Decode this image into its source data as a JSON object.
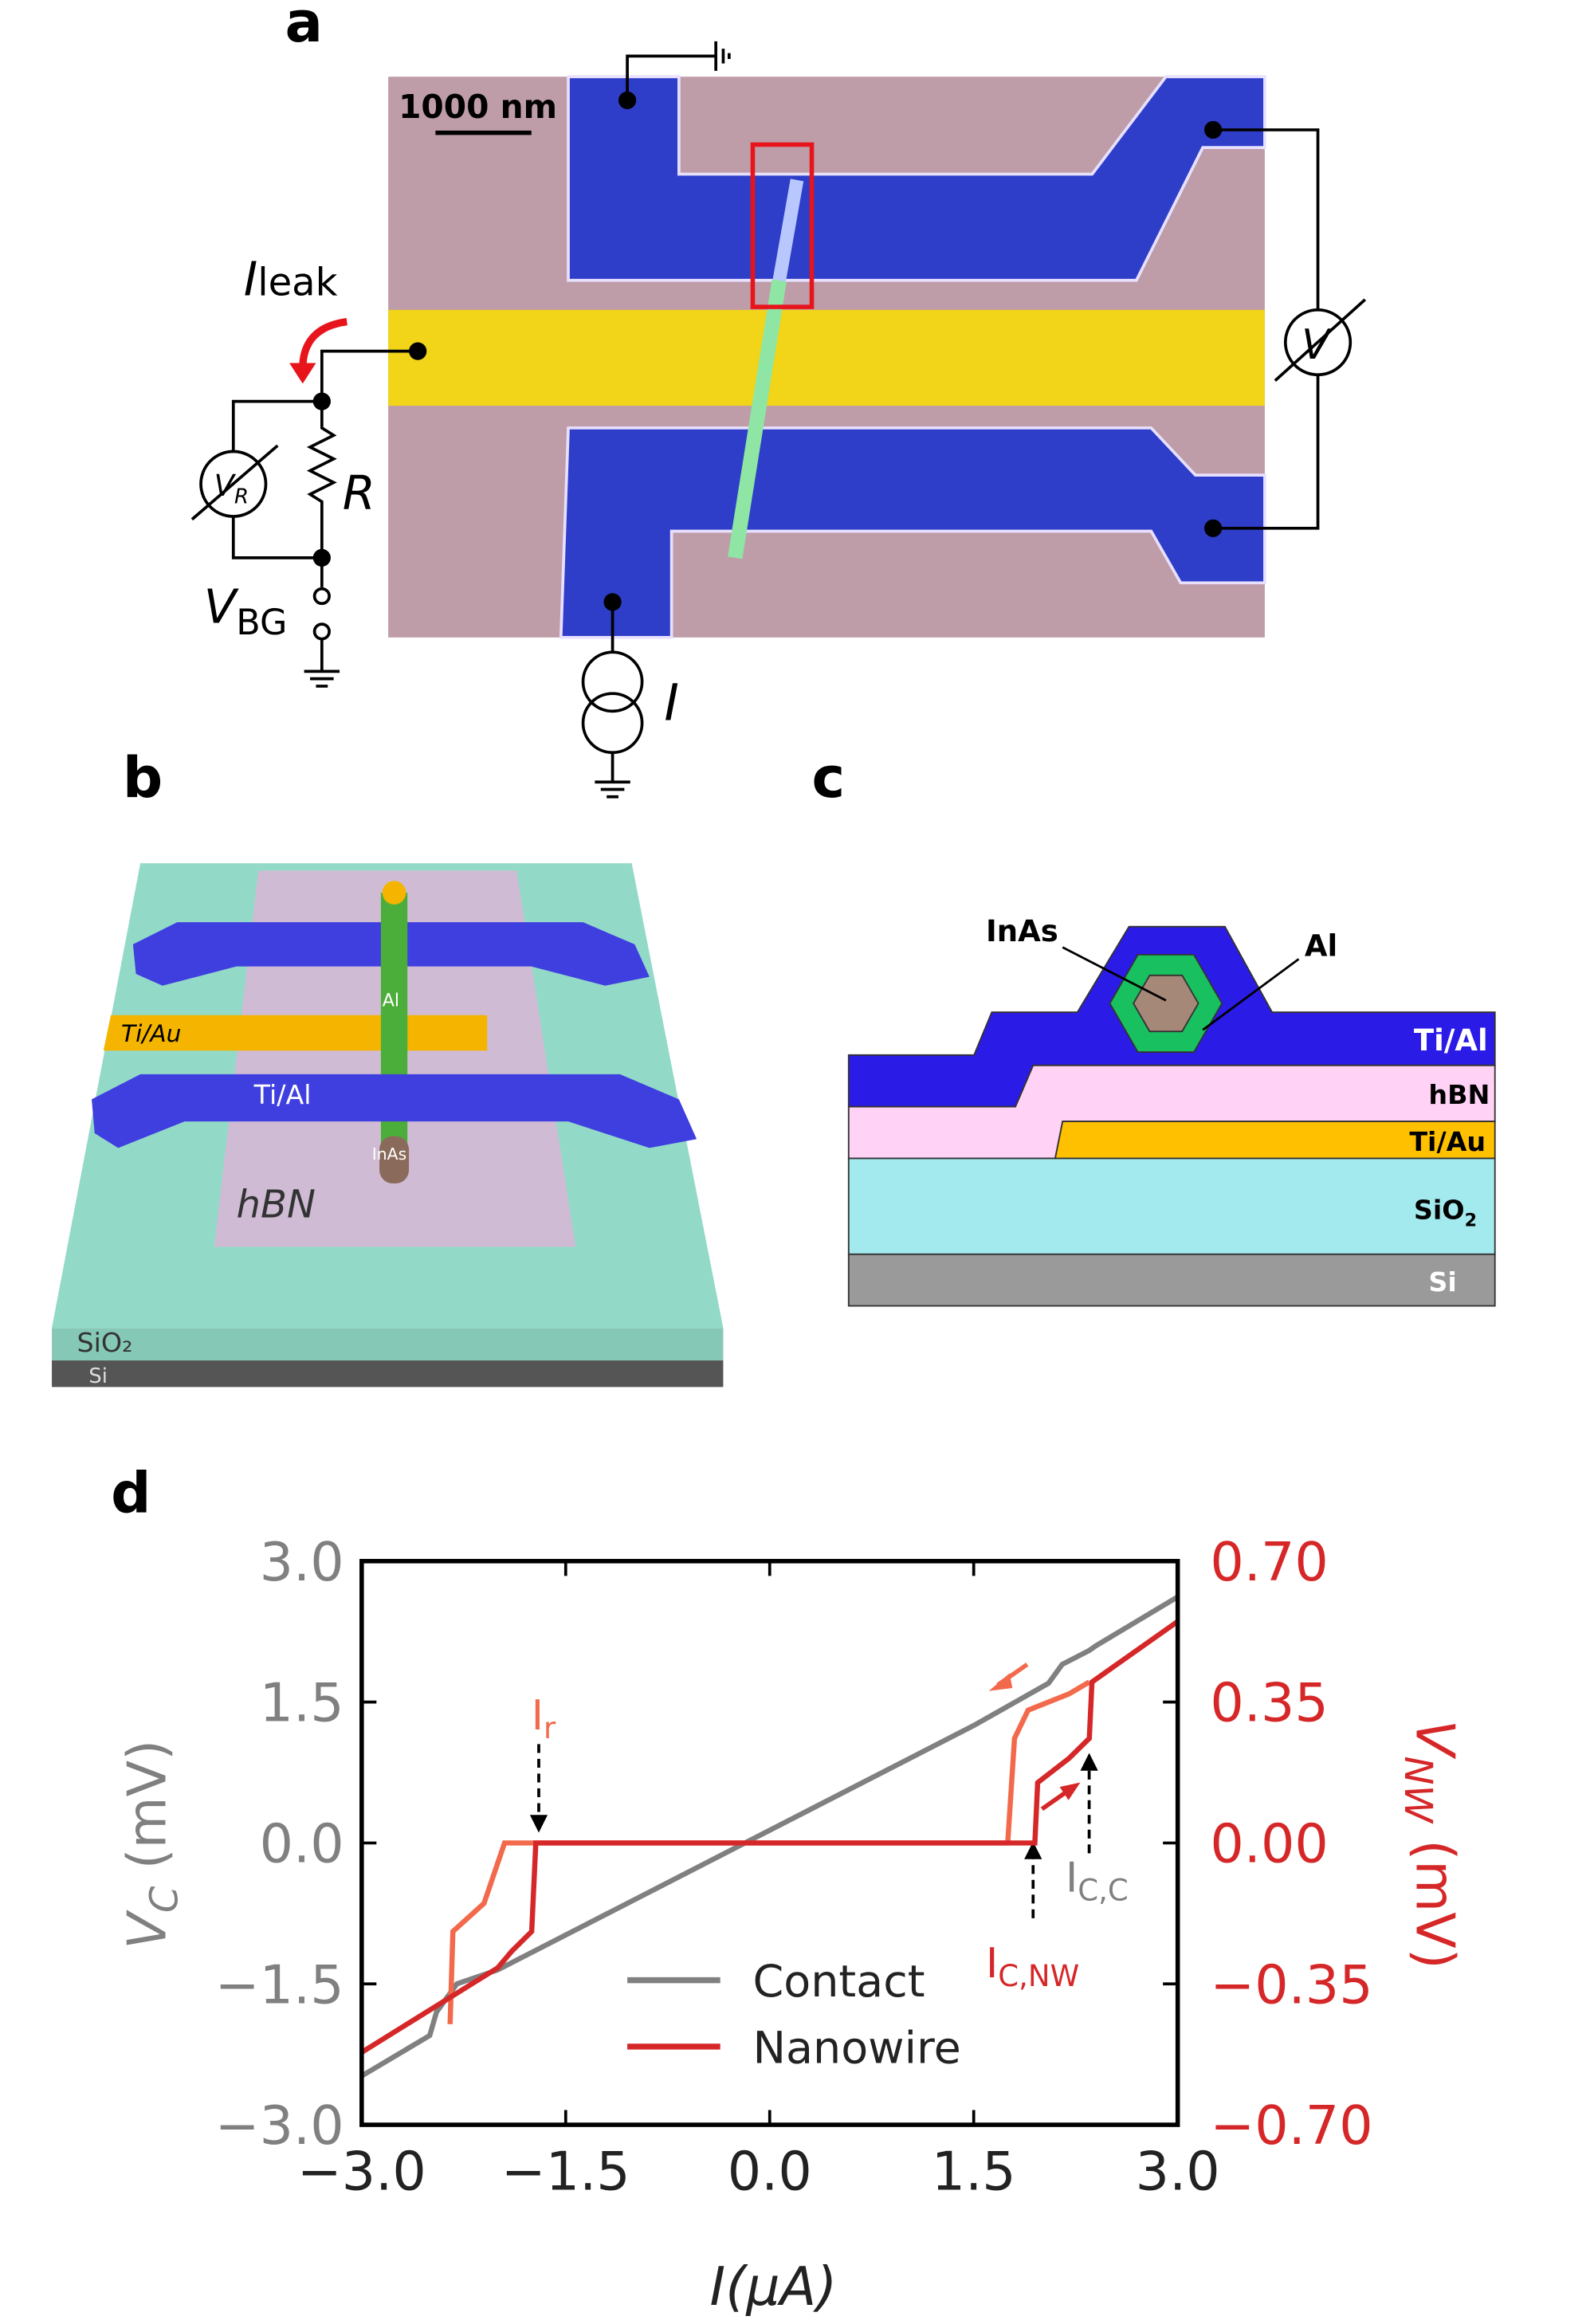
{
  "panel_a": {
    "label": "a",
    "scale_bar": "1000 nm",
    "leak_current": {
      "main": "I",
      "sub": "leak"
    },
    "meter_resistor": {
      "main": "V",
      "sub": "R"
    },
    "resistor": "R",
    "gate_voltage": {
      "main": "V",
      "sub": "BG"
    },
    "meter_voltage": "V",
    "current_source": "I"
  },
  "panel_b": {
    "label": "b",
    "gate": "Ti/Au",
    "shell": "Al",
    "contact": "Ti/Al",
    "core": "InAs",
    "dielectric": "hBN",
    "oxide": "SiO₂",
    "substrate": "Si"
  },
  "panel_c": {
    "label": "c",
    "core": "InAs",
    "shell": "Al",
    "contact": "Ti/Al",
    "dielectric": "hBN",
    "gate": "Ti/Au",
    "oxide": {
      "main": "SiO",
      "sub": "2"
    },
    "substrate": "Si"
  },
  "chart_data": {
    "type": "line",
    "label": "d",
    "xlabel": "I(μA)",
    "ylabel": {
      "main": "V",
      "sub": "C",
      "rest": " (mV)"
    },
    "y2label": {
      "main": "V",
      "sub": "NW",
      "rest": " (mV)"
    },
    "xlim": [
      -3,
      3
    ],
    "xticks": [
      {
        "value": -3,
        "label": "−3.0"
      },
      {
        "value": -1.5,
        "label": "−1.5"
      },
      {
        "value": 0,
        "label": "0.0"
      },
      {
        "value": 1.5,
        "label": "1.5"
      },
      {
        "value": 3,
        "label": "3.0"
      }
    ],
    "ylim": [
      -3,
      3
    ],
    "yticks": [
      {
        "value": -3,
        "label": "−3.0"
      },
      {
        "value": -1.5,
        "label": "−1.5"
      },
      {
        "value": 0,
        "label": "0.0"
      },
      {
        "value": 1.5,
        "label": "1.5"
      },
      {
        "value": 3,
        "label": "3.0"
      }
    ],
    "y2lim": [
      -0.7,
      0.7
    ],
    "y2ticks": [
      {
        "value": -0.7,
        "label": "−0.70"
      },
      {
        "value": -0.35,
        "label": "−0.35"
      },
      {
        "value": 0,
        "label": "0.00"
      },
      {
        "value": 0.35,
        "label": "0.35"
      },
      {
        "value": 0.7,
        "label": "0.70"
      }
    ],
    "annotations": {
      "retrapping": {
        "main": "I",
        "sub": "r"
      },
      "critical_contact": {
        "main": "I",
        "sub": "C,C"
      },
      "critical_nanowire": {
        "main": "I",
        "sub": "C,NW"
      }
    },
    "series": [
      {
        "name": "Contact",
        "color": "#808080",
        "axis": "y",
        "x": [
          -3,
          -2.5,
          -2.45,
          -2.3,
          -2.0,
          1.5,
          2.05,
          2.15,
          2.35,
          2.4,
          3
        ],
        "values": [
          -2.48,
          -2.05,
          -1.8,
          -1.5,
          -1.35,
          1.25,
          1.7,
          1.9,
          2.05,
          2.1,
          2.62
        ]
      },
      {
        "color": "#f26a4b",
        "axis": "y2",
        "x": [
          -2.35,
          -2.33,
          -2.1,
          -1.95,
          1.75,
          1.8,
          1.9,
          2.2,
          2.35
        ],
        "values": [
          -0.45,
          -0.22,
          -0.15,
          0,
          0,
          0.26,
          0.33,
          0.37,
          0.4
        ]
      },
      {
        "name": "Nanowire",
        "color": "#d62728",
        "axis": "y2",
        "x": [
          -3,
          -2.0,
          -1.9,
          -1.75,
          -1.72,
          1.95,
          1.97,
          2.2,
          2.35,
          2.37,
          3
        ],
        "values": [
          -0.52,
          -0.31,
          -0.27,
          -0.22,
          0,
          0,
          0.15,
          0.21,
          0.26,
          0.4,
          0.55
        ]
      }
    ]
  }
}
